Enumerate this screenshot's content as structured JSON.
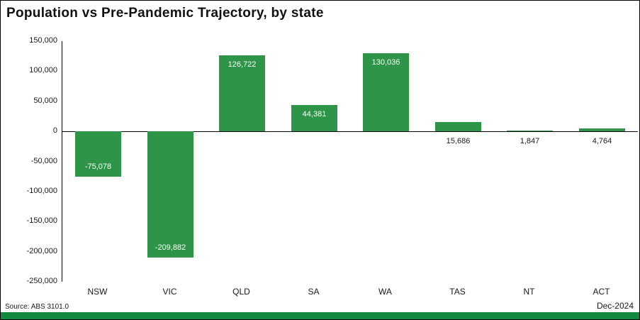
{
  "chart_data": {
    "type": "bar",
    "title": "Population vs Pre-Pandemic Trajectory, by state",
    "categories": [
      "NSW",
      "VIC",
      "QLD",
      "SA",
      "WA",
      "TAS",
      "NT",
      "ACT"
    ],
    "values": [
      -75078,
      -209882,
      126722,
      44381,
      130036,
      15686,
      1847,
      4764
    ],
    "value_labels": [
      "-75,078",
      "-209,882",
      "126,722",
      "44,381",
      "130,036",
      "15,686",
      "1,847",
      "4,764"
    ],
    "xlabel": "",
    "ylabel": "",
    "ylim": [
      -250000,
      150000
    ],
    "y_tick_step": 50000,
    "y_tick_labels": [
      "150,000",
      "100,000",
      "50,000",
      "0",
      "-50,000",
      "-100,000",
      "-150,000",
      "-200,000",
      "-250,000"
    ],
    "grid": false,
    "legend": false,
    "bar_color": "#2e9447",
    "label_inside_color": "#ffffff",
    "label_outside_color": "#1a1a1a"
  },
  "footer": {
    "source": "Source: ABS 3101.0",
    "date": "Dec-2024",
    "accent_color": "#118a3e"
  }
}
